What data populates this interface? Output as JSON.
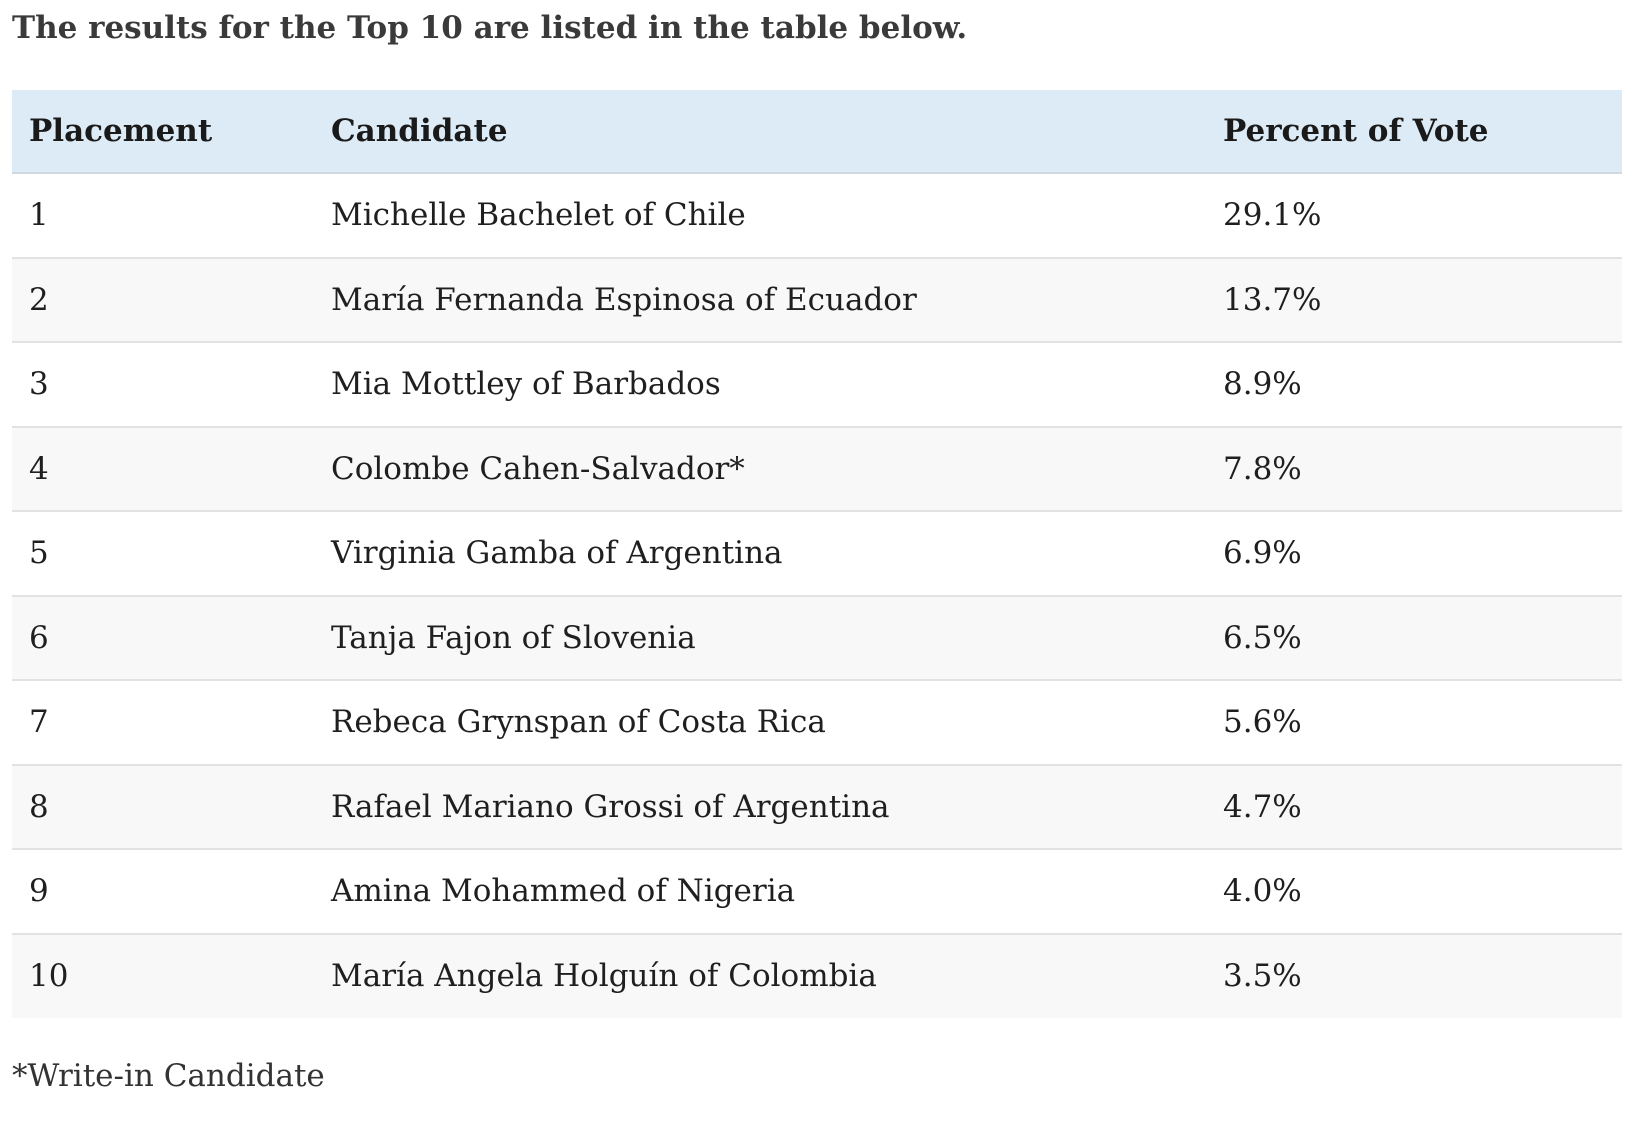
{
  "intro_text": "The results for the Top 10 are listed in the table below.",
  "table": {
    "headers": [
      "Placement",
      "Candidate",
      "Percent of Vote"
    ],
    "rows": [
      [
        "1",
        "Michelle Bachelet of Chile",
        "29.1%"
      ],
      [
        "2",
        "María Fernanda Espinosa of Ecuador",
        "13.7%"
      ],
      [
        "3",
        "Mia Mottley of Barbados",
        "8.9%"
      ],
      [
        "4",
        "Colombe Cahen-Salvador*",
        "7.8%"
      ],
      [
        "5",
        "Virginia Gamba of Argentina",
        "6.9%"
      ],
      [
        "6",
        "Tanja Fajon of Slovenia",
        "6.5%"
      ],
      [
        "7",
        "Rebeca Grynspan of Costa Rica",
        "5.6%"
      ],
      [
        "8",
        "Rafael Mariano Grossi of Argentina",
        "4.7%"
      ],
      [
        "9",
        "Amina Mohammed of Nigeria",
        "4.0%"
      ],
      [
        "10",
        "María Angela Holguín of Colombia",
        "3.5%"
      ]
    ]
  },
  "footnote": "*Write-in Candidate",
  "colors": {
    "header_background": "#ddebf7",
    "alternate_row_background": "#f8f8f8",
    "row_divider": "#e2e2e2",
    "text": "#1f1f1f"
  }
}
